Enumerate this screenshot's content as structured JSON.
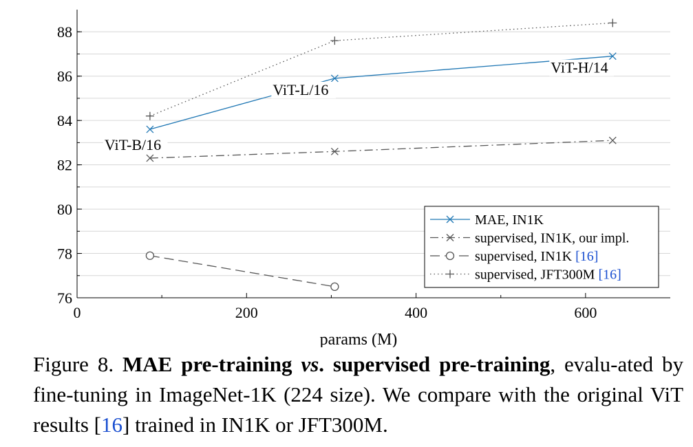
{
  "chart_data": {
    "type": "line",
    "xlabel": "params (M)",
    "ylabel": "",
    "xlim": [
      0,
      700
    ],
    "ylim": [
      76,
      89
    ],
    "xticks": [
      0,
      200,
      400,
      600
    ],
    "yticks": [
      76,
      78,
      80,
      82,
      84,
      86,
      88
    ],
    "grid": "horizontal",
    "legend_position": "bottom-right",
    "series": [
      {
        "name": "MAE, IN1K",
        "x": [
          86,
          304,
          632
        ],
        "y": [
          83.6,
          85.9,
          86.9
        ],
        "color": "#1f77b4",
        "marker": "x",
        "dash": "solid"
      },
      {
        "name": "supervised, IN1K, our impl.",
        "x": [
          86,
          304,
          632
        ],
        "y": [
          82.3,
          82.6,
          83.1
        ],
        "color": "#555555",
        "marker": "x",
        "dash": "dashdot"
      },
      {
        "name": "supervised, IN1K",
        "cite": "16",
        "x": [
          86,
          304
        ],
        "y": [
          77.9,
          76.5
        ],
        "color": "#555555",
        "marker": "o",
        "dash": "dashed"
      },
      {
        "name": "supervised, JFT300M",
        "cite": "16",
        "x": [
          86,
          304,
          632
        ],
        "y": [
          84.2,
          87.6,
          88.4
        ],
        "color": "#555555",
        "marker": "+",
        "dash": "dotted"
      }
    ],
    "annotations": [
      {
        "text": "ViT-B/16",
        "x": 86,
        "y": 83.6
      },
      {
        "text": "ViT-L/16",
        "x": 304,
        "y": 85.9
      },
      {
        "text": "ViT-H/14",
        "x": 632,
        "y": 86.9
      }
    ]
  },
  "caption": {
    "figure_label": "Figure 8.",
    "bold_a": "MAE pre-training",
    "vs": "vs",
    "bold_b": ". supervised pre-training",
    "text_a": ", evalu-ated by fine-tuning in ImageNet-1K (224 size). We compare with the original ViT results [",
    "cite": "16",
    "text_b": "] trained in IN1K or JFT300M."
  }
}
